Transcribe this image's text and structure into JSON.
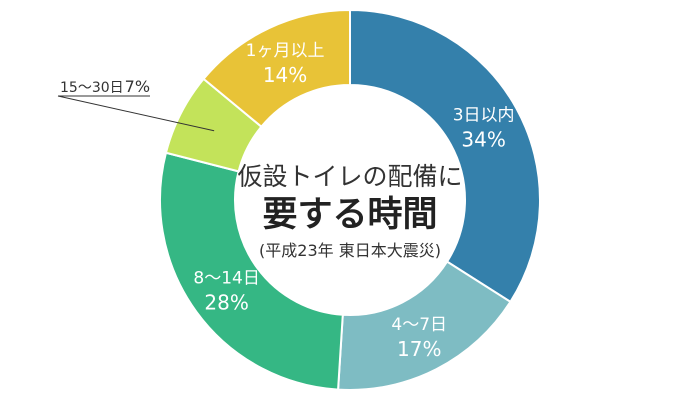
{
  "chart_data": {
    "type": "pie",
    "title_line1": "仮設トイレの配備に",
    "title_line2": "要する時間",
    "subtitle": "(平成23年 東日本大震災)",
    "slices": [
      {
        "label": "3日以内",
        "value": 34,
        "value_text": "34%",
        "color": "#3480ab"
      },
      {
        "label": "4～7日",
        "value": 17,
        "value_text": "17%",
        "color": "#7ebcc3"
      },
      {
        "label": "8～14日",
        "value": 28,
        "value_text": "28%",
        "color": "#35b784"
      },
      {
        "label": "15～30日",
        "value": 7,
        "value_text": "7%",
        "color": "#c3e35a"
      },
      {
        "label": "1ヶ月以上",
        "value": 14,
        "value_text": "14%",
        "color": "#e8c337"
      }
    ]
  }
}
